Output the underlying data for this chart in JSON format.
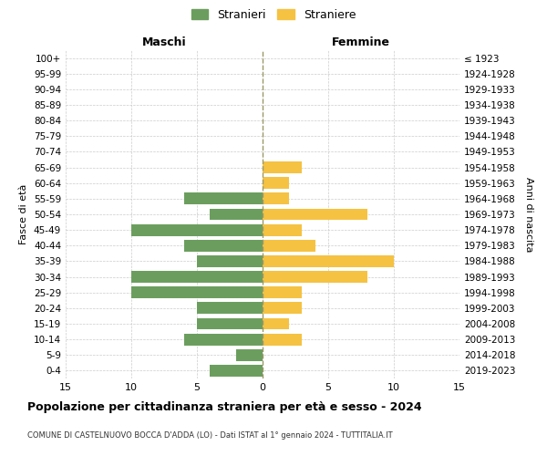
{
  "age_groups": [
    "100+",
    "95-99",
    "90-94",
    "85-89",
    "80-84",
    "75-79",
    "70-74",
    "65-69",
    "60-64",
    "55-59",
    "50-54",
    "45-49",
    "40-44",
    "35-39",
    "30-34",
    "25-29",
    "20-24",
    "15-19",
    "10-14",
    "5-9",
    "0-4"
  ],
  "birth_years": [
    "≤ 1923",
    "1924-1928",
    "1929-1933",
    "1934-1938",
    "1939-1943",
    "1944-1948",
    "1949-1953",
    "1954-1958",
    "1959-1963",
    "1964-1968",
    "1969-1973",
    "1974-1978",
    "1979-1983",
    "1984-1988",
    "1989-1993",
    "1994-1998",
    "1999-2003",
    "2004-2008",
    "2009-2013",
    "2014-2018",
    "2019-2023"
  ],
  "maschi": [
    0,
    0,
    0,
    0,
    0,
    0,
    0,
    0,
    0,
    6,
    4,
    10,
    6,
    5,
    10,
    10,
    5,
    5,
    6,
    2,
    4
  ],
  "femmine": [
    0,
    0,
    0,
    0,
    0,
    0,
    0,
    3,
    2,
    2,
    8,
    3,
    4,
    10,
    8,
    3,
    3,
    2,
    3,
    0,
    0
  ],
  "color_maschi": "#6b9e5e",
  "color_femmine": "#f5c242",
  "xlim": 15,
  "title": "Popolazione per cittadinanza straniera per età e sesso - 2024",
  "subtitle": "COMUNE DI CASTELNUOVO BOCCA D'ADDA (LO) - Dati ISTAT al 1° gennaio 2024 - TUTTITALIA.IT",
  "ylabel_left": "Fasce di età",
  "ylabel_right": "Anni di nascita",
  "legend_maschi": "Stranieri",
  "legend_femmine": "Straniere",
  "maschi_label": "Maschi",
  "femmine_label": "Femmine",
  "background_color": "#ffffff",
  "grid_color": "#cccccc"
}
